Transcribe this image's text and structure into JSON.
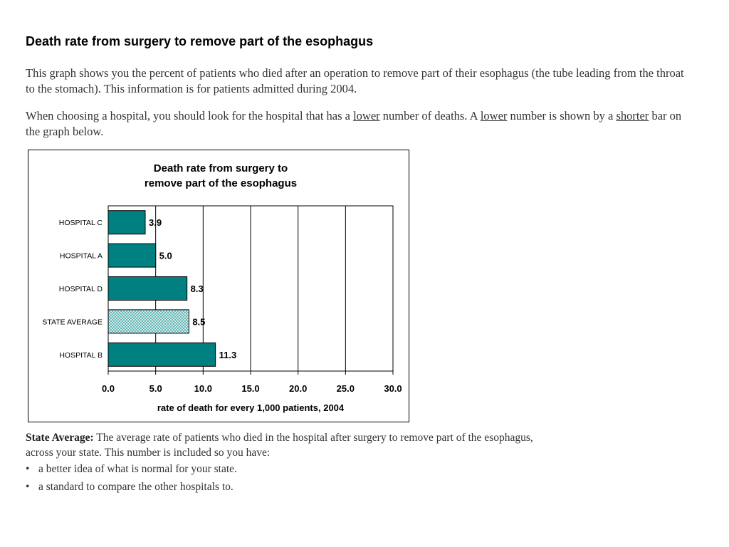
{
  "page": {
    "title": "Death rate from surgery to remove part of the esophagus",
    "intro": {
      "text": "This graph shows you the percent of patients who died after an operation to remove part of their esophagus (the tube leading from the throat to the stomach).  This information is for patients admitted during 2004."
    },
    "guidance": {
      "part1": "When choosing a hospital, you should look for the hospital that has a ",
      "emph1": "lower",
      "part2": " number of deaths. A ",
      "emph2": "lower",
      "part3": " number is shown by a ",
      "emph3": "shorter",
      "part4": " bar on the graph below."
    },
    "footnote": {
      "term": "State Average:",
      "text": " The average rate of patients who died in the hospital after surgery to remove part of the esophagus, across your state.  This number is included so you have:"
    },
    "bullets": [
      "a better idea of what is normal for your state.",
      "a standard to compare the other hospitals to."
    ]
  },
  "colors": {
    "bar": "#008080",
    "state_average_pattern": "#5fb3b3"
  },
  "chart_data": {
    "type": "bar",
    "orientation": "horizontal",
    "title": [
      "Death rate from surgery to",
      "remove part of the esophagus"
    ],
    "categories": [
      "HOSPITAL C",
      "HOSPITAL A",
      "HOSPITAL D",
      "STATE AVERAGE",
      "HOSPITAL B"
    ],
    "values": [
      3.9,
      5.0,
      8.3,
      8.5,
      11.3
    ],
    "value_labels": [
      "3.9",
      "5.0",
      "8.3",
      "8.5",
      "11.3"
    ],
    "highlight_category": "STATE AVERAGE",
    "xlabel": "rate of death for every 1,000 patients, 2004",
    "ylabel": "",
    "xlim": [
      0,
      30
    ],
    "xticks": [
      0,
      5,
      10,
      15,
      20,
      25,
      30
    ],
    "xtick_labels": [
      "0.0",
      "5.0",
      "10.0",
      "15.0",
      "20.0",
      "25.0",
      "30.0"
    ],
    "grid": "vertical",
    "legend": "none"
  }
}
